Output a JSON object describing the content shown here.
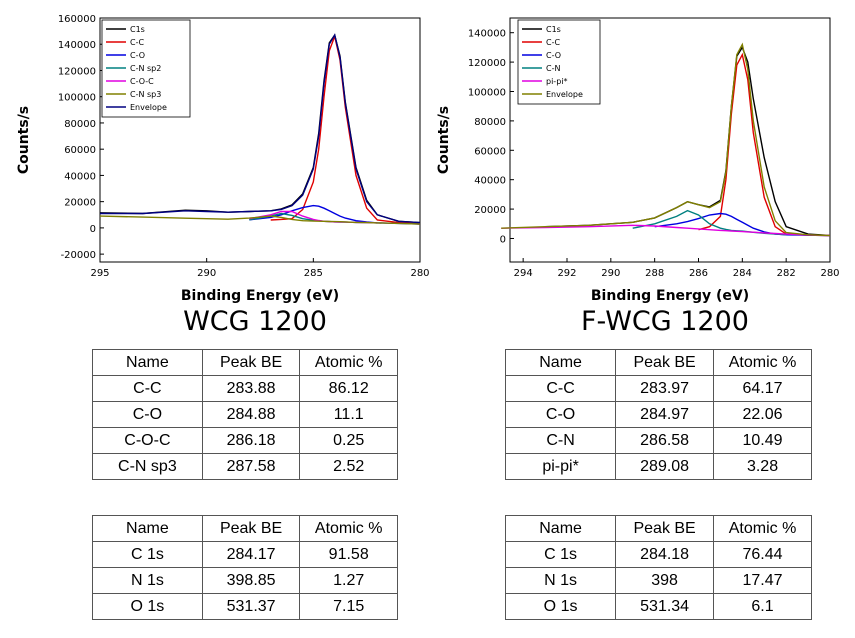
{
  "chart_data": [
    {
      "type": "line",
      "caption": "WCG 1200",
      "x_label": "Binding Energy (eV)",
      "y_label": "Counts/s",
      "xlim": [
        295,
        280
      ],
      "xticks": [
        295,
        290,
        285,
        280
      ],
      "ylim": [
        -26000,
        160000
      ],
      "yticks": [
        -20000,
        0,
        20000,
        40000,
        60000,
        80000,
        100000,
        120000,
        140000,
        160000
      ],
      "x": [
        295,
        293,
        291,
        290,
        289,
        288,
        287,
        286.5,
        286,
        285.5,
        285,
        284.75,
        284.5,
        284.25,
        284,
        283.75,
        283.5,
        283,
        282.5,
        282,
        281,
        280
      ],
      "series": [
        {
          "name": "C1s",
          "color": "#000000",
          "values": [
            11500,
            11000,
            13500,
            13000,
            12000,
            12500,
            13000,
            14500,
            17500,
            26000,
            46000,
            72000,
            112000,
            141000,
            147000,
            131000,
            96000,
            46000,
            21000,
            10000,
            5000,
            4000
          ]
        },
        {
          "name": "C-C",
          "color": "#e00000",
          "values": [
            null,
            null,
            null,
            null,
            null,
            null,
            6000,
            6500,
            7000,
            14000,
            35000,
            60000,
            100000,
            135000,
            146000,
            128000,
            92000,
            40000,
            15000,
            6000,
            4000,
            3000
          ]
        },
        {
          "name": "C-O",
          "color": "#0000e0",
          "values": [
            null,
            null,
            null,
            null,
            null,
            6200,
            8000,
            10000,
            13000,
            15500,
            17000,
            16500,
            15000,
            13000,
            11000,
            9000,
            7500,
            5500,
            4500,
            3800,
            3400,
            3000
          ]
        },
        {
          "name": "C-N sp2",
          "color": "#008080",
          "values": [
            null,
            null,
            null,
            null,
            null,
            6200,
            9000,
            11000,
            9500,
            7000,
            5800,
            5400,
            5000,
            4800,
            4600,
            4500,
            4400,
            4200,
            4000,
            3800,
            null,
            null
          ]
        },
        {
          "name": "C-O-C",
          "color": "#e000e0",
          "values": [
            null,
            null,
            null,
            null,
            null,
            7000,
            10000,
            12500,
            12500,
            9000,
            6500,
            5600,
            5000,
            4800,
            4600,
            4500,
            4400,
            4200,
            4000,
            3800,
            null,
            null
          ]
        },
        {
          "name": "C-N sp3",
          "color": "#808000",
          "values": [
            9000,
            8200,
            7400,
            7000,
            6600,
            7500,
            9000,
            8000,
            6500,
            5500,
            5200,
            5100,
            5000,
            4900,
            4800,
            4700,
            4600,
            4200,
            4000,
            3800,
            3400,
            3000
          ]
        },
        {
          "name": "Envelope",
          "color": "#000080",
          "values": [
            11000,
            11000,
            13000,
            12500,
            12000,
            12500,
            13000,
            14000,
            17000,
            25000,
            45000,
            70000,
            110000,
            140000,
            147000,
            130000,
            95000,
            45000,
            20000,
            10000,
            5000,
            4000
          ]
        }
      ]
    },
    {
      "type": "line",
      "caption": "F-WCG 1200",
      "x_label": "Binding Energy (eV)",
      "y_label": "Counts/s",
      "xlim": [
        294.6,
        280
      ],
      "xticks": [
        294,
        292,
        290,
        288,
        286,
        284,
        282,
        280
      ],
      "ylim": [
        -16000,
        150000
      ],
      "yticks": [
        0,
        20000,
        40000,
        60000,
        80000,
        100000,
        120000,
        140000
      ],
      "x": [
        295,
        293,
        291,
        289,
        288,
        287,
        286.5,
        286,
        285.5,
        285,
        284.75,
        284.5,
        284.25,
        284,
        283.75,
        283.5,
        283,
        282.5,
        282,
        281,
        280
      ],
      "series": [
        {
          "name": "C1s",
          "color": "#000000",
          "values": [
            null,
            8000,
            9000,
            11000,
            14000,
            21000,
            25000,
            23000,
            21500,
            26000,
            46000,
            90000,
            124000,
            130000,
            120000,
            95000,
            55000,
            25000,
            8000,
            3000,
            2000
          ]
        },
        {
          "name": "C-C",
          "color": "#e00000",
          "values": [
            null,
            null,
            null,
            null,
            null,
            null,
            null,
            6000,
            8000,
            15000,
            40000,
            85000,
            118000,
            125000,
            108000,
            72000,
            28000,
            8000,
            3000,
            2200,
            2000
          ]
        },
        {
          "name": "C-O",
          "color": "#0000e0",
          "values": [
            null,
            null,
            null,
            null,
            8000,
            10000,
            11500,
            13500,
            16000,
            17000,
            16500,
            15000,
            13000,
            11000,
            9000,
            7000,
            4500,
            3000,
            2500,
            2200,
            2000
          ]
        },
        {
          "name": "C-N",
          "color": "#008080",
          "values": [
            null,
            null,
            null,
            7000,
            10000,
            15000,
            19000,
            16000,
            10000,
            7000,
            6200,
            5500,
            5200,
            5000,
            4600,
            4200,
            3500,
            3000,
            2600,
            null,
            null
          ]
        },
        {
          "name": "pi-pi*",
          "color": "#e000e0",
          "values": [
            7000,
            7500,
            8000,
            9000,
            8500,
            7500,
            7000,
            6500,
            6000,
            5500,
            5300,
            5100,
            4900,
            4700,
            4500,
            4300,
            3800,
            3400,
            3000,
            2400,
            2000
          ]
        },
        {
          "name": "Envelope",
          "color": "#808000",
          "values": [
            7000,
            8000,
            9000,
            11000,
            14000,
            21000,
            25000,
            23000,
            21000,
            25000,
            45000,
            90000,
            125000,
            132000,
            115000,
            80000,
            35000,
            12000,
            4000,
            2500,
            2000
          ]
        }
      ]
    }
  ],
  "tables": [
    {
      "header": [
        "Name",
        "Peak BE",
        "Atomic %"
      ],
      "rows": [
        [
          "C-C",
          283.88,
          86.12
        ],
        [
          "C-O",
          284.88,
          11.1
        ],
        [
          "C-O-C",
          286.18,
          0.25
        ],
        [
          "C-N sp3",
          287.58,
          2.52
        ]
      ]
    },
    {
      "header": [
        "Name",
        "Peak BE",
        "Atomic %"
      ],
      "rows": [
        [
          "C-C",
          283.97,
          64.17
        ],
        [
          "C-O",
          284.97,
          22.06
        ],
        [
          "C-N",
          286.58,
          10.49
        ],
        [
          "pi-pi*",
          289.08,
          3.28
        ]
      ]
    },
    {
      "header": [
        "Name",
        "Peak BE",
        "Atomic %"
      ],
      "rows": [
        [
          "C 1s",
          284.17,
          91.58
        ],
        [
          "N 1s",
          398.85,
          1.27
        ],
        [
          "O 1s",
          531.37,
          7.15
        ]
      ]
    },
    {
      "header": [
        "Name",
        "Peak BE",
        "Atomic %"
      ],
      "rows": [
        [
          "C 1s",
          284.18,
          76.44
        ],
        [
          "N 1s",
          398,
          17.47
        ],
        [
          "O 1s",
          531.34,
          6.1
        ]
      ]
    }
  ]
}
